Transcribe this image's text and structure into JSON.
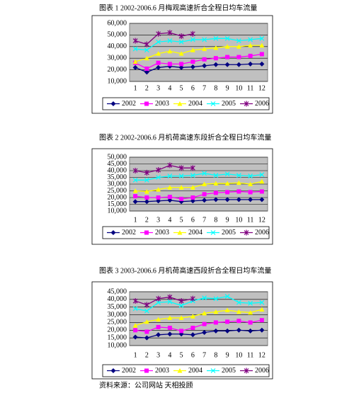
{
  "chart_data": [
    {
      "type": "line",
      "title": "图表 1   2002-2006.6 月梅观高速折合全程日均车流量",
      "categories": [
        "1",
        "2",
        "3",
        "4",
        "5",
        "6",
        "7",
        "8",
        "9",
        "10",
        "11",
        "12"
      ],
      "series": [
        {
          "name": "2002",
          "color": "#000080",
          "values": [
            22000,
            18000,
            22000,
            23000,
            22000,
            22500,
            23500,
            24500,
            24500,
            24500,
            25000,
            25000
          ]
        },
        {
          "name": "2003",
          "color": "#ff00ff",
          "values": [
            26000,
            21000,
            26000,
            25000,
            25000,
            27000,
            29000,
            30000,
            31000,
            31000,
            32000,
            33500
          ]
        },
        {
          "name": "2004",
          "color": "#ffff00",
          "values": [
            27000,
            30000,
            34000,
            36000,
            34000,
            37000,
            38000,
            39000,
            40000,
            40000,
            41000,
            41000
          ]
        },
        {
          "name": "2005",
          "color": "#00ffff",
          "values": [
            38000,
            37000,
            44000,
            45000,
            44000,
            46000,
            46000,
            47000,
            47000,
            45000,
            46000,
            47000
          ]
        },
        {
          "name": "2006",
          "color": "#800080",
          "values": [
            45000,
            42000,
            51000,
            52000,
            49000,
            51000,
            null,
            null,
            null,
            null,
            null,
            null
          ]
        }
      ],
      "ylim": [
        10000,
        60000
      ],
      "yticks": [
        {
          "value": 10000,
          "label": "10,000"
        },
        {
          "value": 20000,
          "label": "20,000"
        },
        {
          "value": 30000,
          "label": "30,000"
        },
        {
          "value": 40000,
          "label": "40,000"
        },
        {
          "value": 50000,
          "label": "50,000"
        },
        {
          "value": 60000,
          "label": "60,000"
        }
      ],
      "grid": true,
      "legend": "bottom"
    },
    {
      "type": "line",
      "title": "图表 2   2002-2006.6 月机荷高速东段折合全程日均车流量",
      "categories": [
        "1",
        "2",
        "3",
        "4",
        "5",
        "6",
        "7",
        "8",
        "9",
        "10",
        "11",
        "12"
      ],
      "series": [
        {
          "name": "2002",
          "color": "#000080",
          "values": [
            17000,
            17000,
            17500,
            18000,
            17000,
            17500,
            18000,
            18500,
            18500,
            18500,
            18500,
            18500
          ]
        },
        {
          "name": "2003",
          "color": "#ff00ff",
          "values": [
            21000,
            20000,
            20000,
            20500,
            19000,
            20000,
            22500,
            23500,
            24000,
            24500,
            24000,
            24500
          ]
        },
        {
          "name": "2004",
          "color": "#ffff00",
          "values": [
            25000,
            24500,
            26000,
            27500,
            27500,
            27500,
            30000,
            30500,
            30500,
            31000,
            30000,
            32000
          ]
        },
        {
          "name": "2005",
          "color": "#00ffff",
          "values": [
            33000,
            33000,
            35000,
            36000,
            36000,
            36500,
            38000,
            36500,
            37500,
            36500,
            36000,
            37000
          ]
        },
        {
          "name": "2006",
          "color": "#800080",
          "values": [
            40000,
            38500,
            40500,
            44000,
            42000,
            42000,
            null,
            null,
            null,
            null,
            null,
            null
          ]
        }
      ],
      "ylim": [
        10000,
        50000
      ],
      "yticks": [
        {
          "value": 10000,
          "label": "10,000"
        },
        {
          "value": 15000,
          "label": "15,000"
        },
        {
          "value": 20000,
          "label": "20,000"
        },
        {
          "value": 25000,
          "label": "25,000"
        },
        {
          "value": 30000,
          "label": "30,000"
        },
        {
          "value": 35000,
          "label": "35,000"
        },
        {
          "value": 40000,
          "label": "40,000"
        },
        {
          "value": 45000,
          "label": "45,000"
        },
        {
          "value": 50000,
          "label": "50,000"
        }
      ],
      "grid": true,
      "legend": "bottom"
    },
    {
      "type": "line",
      "title": "图表 3   2003-2006.6 月机荷高速西段折合全程日均车流量",
      "categories": [
        "1",
        "2",
        "3",
        "4",
        "5",
        "6",
        "7",
        "8",
        "9",
        "10",
        "11",
        "12"
      ],
      "series": [
        {
          "name": "2002",
          "color": "#000080",
          "values": [
            15500,
            15000,
            17000,
            17500,
            17500,
            17000,
            18500,
            19500,
            19500,
            20000,
            19500,
            20000
          ]
        },
        {
          "name": "2003",
          "color": "#ff00ff",
          "values": [
            20000,
            19000,
            22000,
            21500,
            19500,
            21500,
            24000,
            25000,
            25500,
            26000,
            25000,
            26500
          ]
        },
        {
          "name": "2004",
          "color": "#ffff00",
          "values": [
            23000,
            25500,
            27000,
            28000,
            28000,
            29000,
            31000,
            32000,
            33000,
            32000,
            31500,
            33500
          ]
        },
        {
          "name": "2005",
          "color": "#00ffff",
          "values": [
            34000,
            32500,
            38000,
            38500,
            36000,
            39000,
            41000,
            40500,
            42000,
            38000,
            37500,
            38000
          ]
        },
        {
          "name": "2006",
          "color": "#800080",
          "values": [
            39000,
            36500,
            40500,
            41500,
            39000,
            40500,
            null,
            null,
            null,
            null,
            null,
            null
          ]
        }
      ],
      "ylim": [
        10000,
        45000
      ],
      "yticks": [
        {
          "value": 10000,
          "label": "10,000"
        },
        {
          "value": 15000,
          "label": "15,000"
        },
        {
          "value": 20000,
          "label": "20,000"
        },
        {
          "value": 25000,
          "label": "25,000"
        },
        {
          "value": 30000,
          "label": "30,000"
        },
        {
          "value": 35000,
          "label": "35,000"
        },
        {
          "value": 40000,
          "label": "40,000"
        },
        {
          "value": 45000,
          "label": "45,000"
        }
      ],
      "grid": true,
      "legend": "bottom"
    }
  ],
  "source": "资料来源：公司网站  天相投顾"
}
